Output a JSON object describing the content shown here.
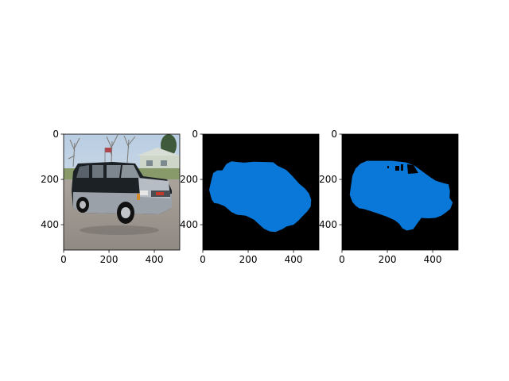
{
  "colors": {
    "background": "#000000",
    "mask_fill": "#0a78d8",
    "axis": "#000000"
  },
  "chart_data": [
    {
      "type": "image",
      "content": "photo of a dark SUV parked on a road",
      "xlim": [
        0,
        512
      ],
      "ylim": [
        512,
        0
      ],
      "xticks": [
        0,
        200,
        400
      ],
      "yticks": [
        0,
        200,
        400
      ],
      "x_tick_labels": [
        "0",
        "200",
        "400"
      ],
      "y_tick_labels": [
        "0",
        "200",
        "400"
      ]
    },
    {
      "type": "image",
      "content": "segmentation mask of the vehicle",
      "xlim": [
        0,
        512
      ],
      "ylim": [
        512,
        0
      ],
      "xticks": [
        0,
        200,
        400
      ],
      "yticks": [
        0,
        200,
        400
      ],
      "x_tick_labels": [
        "0",
        "200",
        "400"
      ],
      "y_tick_labels": [
        "0",
        "200",
        "400"
      ],
      "mask_polygon": [
        [
          28,
          246
        ],
        [
          36,
          210
        ],
        [
          46,
          172
        ],
        [
          64,
          160
        ],
        [
          86,
          160
        ],
        [
          104,
          132
        ],
        [
          126,
          120
        ],
        [
          180,
          126
        ],
        [
          226,
          122
        ],
        [
          310,
          124
        ],
        [
          330,
          140
        ],
        [
          368,
          158
        ],
        [
          390,
          180
        ],
        [
          410,
          202
        ],
        [
          426,
          220
        ],
        [
          450,
          240
        ],
        [
          468,
          262
        ],
        [
          478,
          290
        ],
        [
          476,
          320
        ],
        [
          460,
          342
        ],
        [
          440,
          362
        ],
        [
          422,
          382
        ],
        [
          400,
          400
        ],
        [
          370,
          408
        ],
        [
          350,
          420
        ],
        [
          320,
          432
        ],
        [
          296,
          430
        ],
        [
          270,
          418
        ],
        [
          250,
          400
        ],
        [
          226,
          378
        ],
        [
          190,
          360
        ],
        [
          150,
          356
        ],
        [
          126,
          344
        ],
        [
          110,
          330
        ],
        [
          96,
          318
        ],
        [
          70,
          308
        ],
        [
          50,
          304
        ],
        [
          40,
          290
        ],
        [
          34,
          270
        ]
      ]
    },
    {
      "type": "image",
      "content": "predicted segmentation mask of the vehicle",
      "xlim": [
        0,
        512
      ],
      "ylim": [
        512,
        0
      ],
      "xticks": [
        0,
        200,
        400
      ],
      "yticks": [
        0,
        200,
        400
      ],
      "x_tick_labels": [
        "0",
        "200",
        "400"
      ],
      "y_tick_labels": [
        "0",
        "200",
        "400"
      ],
      "mask_polygon": [
        [
          34,
          268
        ],
        [
          40,
          226
        ],
        [
          46,
          184
        ],
        [
          60,
          152
        ],
        [
          82,
          130
        ],
        [
          110,
          118
        ],
        [
          220,
          118
        ],
        [
          280,
          124
        ],
        [
          318,
          138
        ],
        [
          346,
          158
        ],
        [
          370,
          176
        ],
        [
          392,
          192
        ],
        [
          414,
          206
        ],
        [
          446,
          216
        ],
        [
          470,
          222
        ],
        [
          476,
          252
        ],
        [
          474,
          282
        ],
        [
          488,
          302
        ],
        [
          478,
          330
        ],
        [
          458,
          346
        ],
        [
          438,
          360
        ],
        [
          412,
          370
        ],
        [
          380,
          372
        ],
        [
          350,
          370
        ],
        [
          334,
          392
        ],
        [
          314,
          420
        ],
        [
          286,
          426
        ],
        [
          266,
          416
        ],
        [
          252,
          396
        ],
        [
          232,
          380
        ],
        [
          196,
          364
        ],
        [
          156,
          350
        ],
        [
          120,
          338
        ],
        [
          94,
          330
        ],
        [
          76,
          328
        ],
        [
          60,
          316
        ],
        [
          46,
          300
        ]
      ]
    }
  ]
}
